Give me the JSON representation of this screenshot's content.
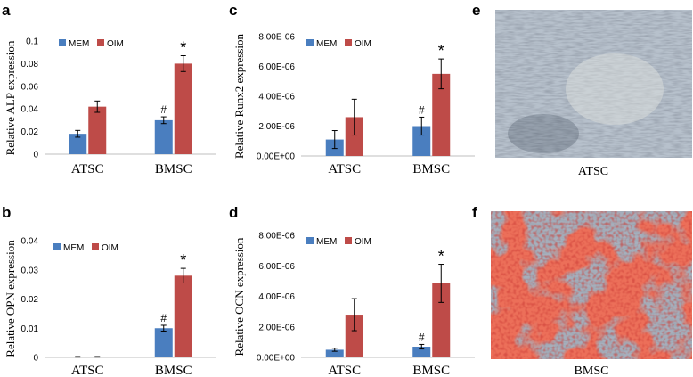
{
  "colors": {
    "MEM": "#4a7ebf",
    "OIM": "#be4b48",
    "error": "#000000"
  },
  "chart_data": [
    {
      "panel": "a",
      "type": "bar",
      "categories": [
        "ATSC",
        "BMSC"
      ],
      "series": [
        {
          "name": "MEM",
          "values": [
            0.018,
            0.03
          ],
          "errors": [
            0.003,
            0.003
          ]
        },
        {
          "name": "OIM",
          "values": [
            0.042,
            0.08
          ],
          "errors": [
            0.005,
            0.007
          ]
        }
      ],
      "ylabel": "Relative ALP expression",
      "ylim": [
        0,
        0.1
      ],
      "yticks": [
        "0",
        "0.02",
        "0.04",
        "0.06",
        "0.08",
        "0.1"
      ],
      "annotations": [
        {
          "text": "#",
          "category": "BMSC",
          "series": "MEM"
        },
        {
          "text": "*",
          "category": "BMSC",
          "series": "OIM"
        }
      ]
    },
    {
      "panel": "b",
      "type": "bar",
      "categories": [
        "ATSC",
        "BMSC"
      ],
      "series": [
        {
          "name": "MEM",
          "values": [
            0.0002,
            0.01
          ],
          "errors": [
            0.0001,
            0.001
          ]
        },
        {
          "name": "OIM",
          "values": [
            0.0002,
            0.028
          ],
          "errors": [
            0.0001,
            0.0025
          ]
        }
      ],
      "ylabel": "Relative OPN expression",
      "ylim": [
        0,
        0.04
      ],
      "yticks": [
        "0",
        "0.01",
        "0.02",
        "0.03",
        "0.04"
      ],
      "annotations": [
        {
          "text": "#",
          "category": "BMSC",
          "series": "MEM"
        },
        {
          "text": "*",
          "category": "BMSC",
          "series": "OIM"
        }
      ]
    },
    {
      "panel": "c",
      "type": "bar",
      "categories": [
        "ATSC",
        "BMSC"
      ],
      "series": [
        {
          "name": "MEM",
          "values": [
            1.1e-06,
            2e-06
          ],
          "errors": [
            6e-07,
            6e-07
          ]
        },
        {
          "name": "OIM",
          "values": [
            2.6e-06,
            5.5e-06
          ],
          "errors": [
            1.2e-06,
            1e-06
          ]
        }
      ],
      "ylabel": "Relative Runx2 expression",
      "ylim": [
        0,
        8e-06
      ],
      "yticks": [
        "0.00E+00",
        "2.00E-06",
        "4.00E-06",
        "6.00E-06",
        "8.00E-06"
      ],
      "annotations": [
        {
          "text": "#",
          "category": "BMSC",
          "series": "MEM"
        },
        {
          "text": "*",
          "category": "BMSC",
          "series": "OIM"
        }
      ]
    },
    {
      "panel": "d",
      "type": "bar",
      "categories": [
        "ATSC",
        "BMSC"
      ],
      "series": [
        {
          "name": "MEM",
          "values": [
            5e-07,
            7e-07
          ],
          "errors": [
            1e-07,
            1.5e-07
          ]
        },
        {
          "name": "OIM",
          "values": [
            2.8e-06,
            4.85e-06
          ],
          "errors": [
            1.05e-06,
            1.25e-06
          ]
        }
      ],
      "ylabel": "Relative OCN expression",
      "ylim": [
        0,
        8e-06
      ],
      "yticks": [
        "0.00E+00",
        "2.00E-06",
        "4.00E-06",
        "6.00E-06",
        "8.00E-06"
      ],
      "annotations": [
        {
          "text": "#",
          "category": "BMSC",
          "series": "MEM"
        },
        {
          "text": "*",
          "category": "BMSC",
          "series": "OIM"
        }
      ]
    }
  ],
  "micrographs": [
    {
      "panel": "e",
      "label": "ATSC"
    },
    {
      "panel": "f",
      "label": "BMSC"
    }
  ]
}
